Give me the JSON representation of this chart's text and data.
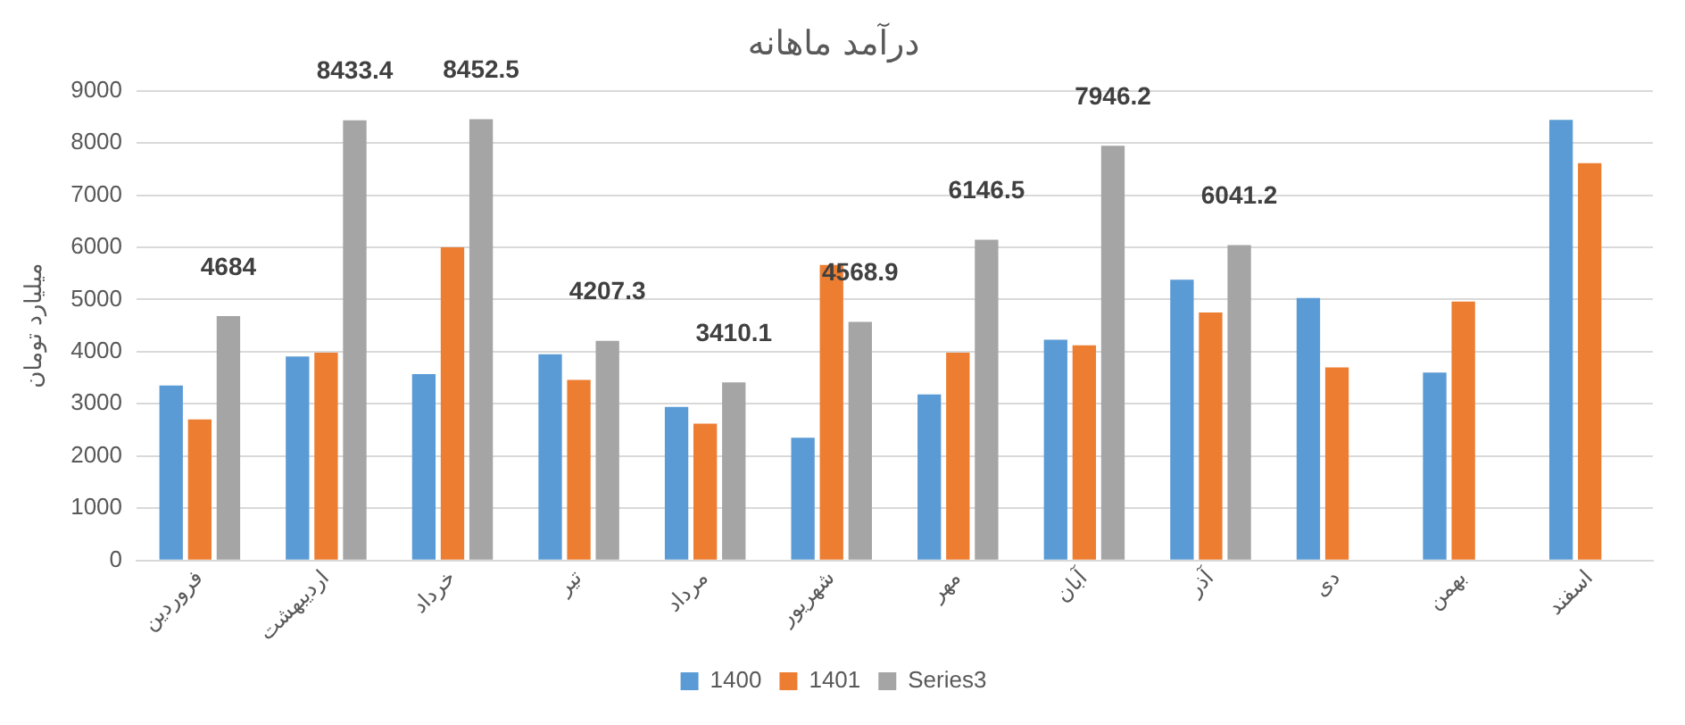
{
  "chart_data": {
    "type": "bar",
    "title": "درآمد ماهانه",
    "ylabel": "میلیارد تومان",
    "categories": [
      "فروردین",
      "اردیبهشت",
      "خرداد",
      "تیر",
      "مرداد",
      "شهریور",
      "مهر",
      "آبان",
      "آذر",
      "دی",
      "بهمن",
      "اسفند"
    ],
    "series": [
      {
        "name": "1400",
        "color": "#5b9bd5",
        "values": [
          3350,
          3910,
          3570,
          3950,
          2940,
          2350,
          3180,
          4230,
          5380,
          5030,
          3600,
          8440
        ]
      },
      {
        "name": "1401",
        "color": "#ed7d31",
        "values": [
          2700,
          3980,
          6000,
          3460,
          2620,
          5660,
          3980,
          4120,
          4750,
          3700,
          4960,
          7610
        ]
      },
      {
        "name": "Series3",
        "color": "#a5a5a5",
        "values": [
          4684,
          8433.4,
          8452.5,
          4207.3,
          3410.1,
          4568.9,
          6146.5,
          7946.2,
          6041.2,
          null,
          null,
          null
        ],
        "value_labels": [
          "4684",
          "8433.4",
          "8452.5",
          "4207.3",
          "3410.1",
          "4568.9",
          "6146.5",
          "7946.2",
          "6041.2",
          null,
          null,
          null
        ]
      }
    ],
    "ylim": [
      0,
      9000
    ],
    "yticks": [
      0,
      1000,
      2000,
      3000,
      4000,
      5000,
      6000,
      7000,
      8000,
      9000
    ],
    "grid": "y",
    "legend": "bottom"
  }
}
